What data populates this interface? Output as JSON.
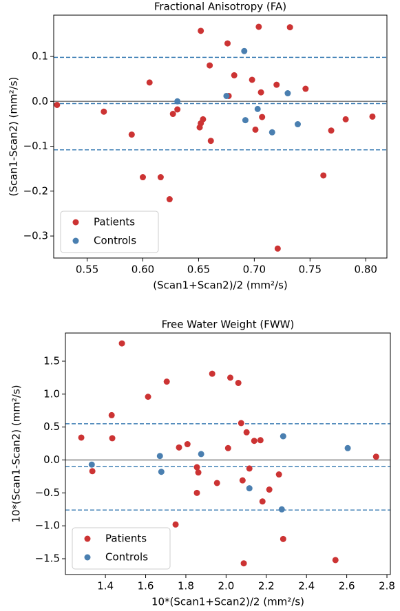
{
  "chart_data": [
    {
      "type": "scatter",
      "title": "Fractional Anisotropy (FA)",
      "x_label": "(Scan1+Scan2)/2 (mm²/s)",
      "y_label": "(Scan1-Scan2) (mm²/s)",
      "xlim": [
        0.52,
        0.819
      ],
      "ylim": [
        -0.349,
        0.192
      ],
      "xticks": [
        0.55,
        {
          "value": 0.6,
          "label": "0.60"
        },
        0.65,
        {
          "value": 0.7,
          "label": "0.70"
        },
        0.75,
        {
          "value": 0.8,
          "label": "0.80"
        }
      ],
      "yticks": [
        0.1,
        {
          "value": 0,
          "label": "0.0"
        },
        {
          "value": -0.1,
          "label": "−0.1"
        },
        {
          "value": -0.2,
          "label": "−0.2"
        },
        {
          "value": -0.3,
          "label": "−0.3"
        }
      ],
      "zero_line": {
        "value": 0,
        "color": "#808080"
      },
      "reference_lines": [
        {
          "value": -0.005,
          "color": "#3f7fb5"
        },
        {
          "value": 0.098,
          "color": "#3f7fb5"
        },
        {
          "value": -0.108,
          "color": "#3f7fb5"
        }
      ],
      "legend": "lower left",
      "series": [
        {
          "name": "Patients",
          "color": "#cc3333",
          "x": [
            0.523,
            0.565,
            0.59,
            0.606,
            0.6,
            0.616,
            0.624,
            0.627,
            0.631,
            0.652,
            0.651,
            0.652,
            0.654,
            0.661,
            0.66,
            0.676,
            0.677,
            0.682,
            0.704,
            0.698,
            0.701,
            0.706,
            0.707,
            0.72,
            0.721,
            0.732,
            0.746,
            0.762,
            0.769,
            0.782,
            0.806
          ],
          "values": [
            -0.008,
            -0.023,
            -0.074,
            0.042,
            -0.169,
            -0.169,
            -0.218,
            -0.028,
            -0.018,
            0.157,
            -0.058,
            -0.049,
            -0.04,
            -0.088,
            0.08,
            0.129,
            0.012,
            0.058,
            0.166,
            0.048,
            -0.063,
            0.02,
            -0.035,
            0.037,
            -0.328,
            0.165,
            0.028,
            -0.165,
            -0.065,
            -0.04,
            -0.034
          ]
        },
        {
          "name": "Controls",
          "color": "#4a7fb0",
          "x": [
            0.631,
            0.691,
            0.675,
            0.692,
            0.703,
            0.716,
            0.73,
            0.739
          ],
          "values": [
            0,
            0.112,
            0.012,
            -0.042,
            -0.017,
            -0.069,
            0.018,
            -0.051
          ]
        }
      ]
    },
    {
      "type": "scatter",
      "title": "Free Water Weight (FWW)",
      "x_label": "10*(Scan1+Scan2)/2 (mm²/s)",
      "y_label": "10*(Scan1-Scan2) (mm²/s)",
      "xlim": [
        1.201,
        2.817
      ],
      "ylim": [
        -1.74,
        1.928
      ],
      "xticks": [
        1.4,
        1.6,
        1.8,
        {
          "value": 2,
          "label": "2.0"
        },
        2.2,
        2.4,
        2.6,
        2.8
      ],
      "yticks": [
        1.5,
        {
          "value": 1,
          "label": "1.0"
        },
        0.5,
        {
          "value": 0,
          "label": "0.0"
        },
        {
          "value": -0.5,
          "label": "−0.5"
        },
        {
          "value": -1,
          "label": "−1.0"
        },
        {
          "value": -1.5,
          "label": "−1.5"
        }
      ],
      "zero_line": {
        "value": 0,
        "color": "#808080"
      },
      "reference_lines": [
        {
          "value": -0.1,
          "color": "#3f7fb5"
        },
        {
          "value": 0.55,
          "color": "#3f7fb5"
        },
        {
          "value": -0.76,
          "color": "#3f7fb5"
        }
      ],
      "legend": "lower left",
      "series": [
        {
          "name": "Patients",
          "color": "#cc3333",
          "x": [
            1.28,
            1.335,
            1.431,
            1.434,
            1.482,
            1.612,
            1.705,
            1.749,
            1.766,
            1.808,
            1.855,
            1.862,
            1.855,
            1.955,
            1.931,
            2.01,
            2.021,
            2.061,
            2.075,
            2.082,
            2.088,
            2.102,
            2.116,
            2.14,
            2.171,
            2.181,
            2.215,
            2.263,
            2.284,
            2.544,
            2.746
          ],
          "values": [
            0.34,
            -0.17,
            0.68,
            0.33,
            1.77,
            0.96,
            1.19,
            -0.98,
            0.19,
            0.24,
            -0.11,
            -0.19,
            -0.5,
            -0.35,
            1.31,
            0.18,
            1.25,
            1.17,
            0.56,
            -0.31,
            -1.57,
            0.42,
            -0.13,
            0.29,
            0.3,
            -0.63,
            -0.45,
            -0.22,
            -1.2,
            -1.52,
            0.05
          ]
        },
        {
          "name": "Controls",
          "color": "#4a7fb0",
          "x": [
            1.332,
            1.671,
            1.678,
            1.876,
            2.116,
            2.277,
            2.284,
            2.605
          ],
          "values": [
            -0.07,
            0.06,
            -0.18,
            0.09,
            -0.43,
            -0.75,
            0.36,
            0.18
          ]
        }
      ]
    }
  ]
}
